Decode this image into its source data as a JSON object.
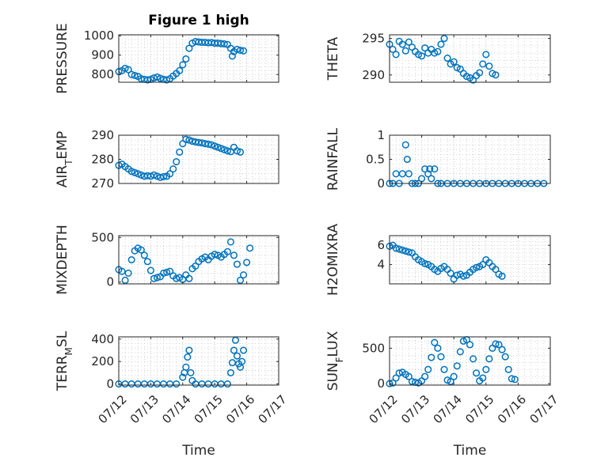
{
  "figure": {
    "title": "Figure 1 high"
  },
  "colors": {
    "marker": "#0072BD",
    "axis": "#262626",
    "grid": "#c8c8c8"
  },
  "x_ticks": [
    "07/12",
    "07/13",
    "07/14",
    "07/15",
    "07/16",
    "07/17"
  ],
  "chart_data": [
    {
      "type": "scatter",
      "ylabel": "PRESSURE",
      "ylabel_parts": [
        "PRESSURE"
      ],
      "xlabel": "",
      "xlim": [
        0,
        5
      ],
      "ylim": [
        760,
        1005
      ],
      "yticks": [
        800,
        900,
        1000
      ],
      "grid": true,
      "points": [
        [
          0.0,
          815
        ],
        [
          0.1,
          820
        ],
        [
          0.2,
          832
        ],
        [
          0.3,
          825
        ],
        [
          0.4,
          800
        ],
        [
          0.5,
          795
        ],
        [
          0.6,
          790
        ],
        [
          0.7,
          778
        ],
        [
          0.8,
          775
        ],
        [
          0.9,
          772
        ],
        [
          1.0,
          775
        ],
        [
          1.1,
          782
        ],
        [
          1.2,
          787
        ],
        [
          1.3,
          780
        ],
        [
          1.4,
          775
        ],
        [
          1.5,
          772
        ],
        [
          1.6,
          778
        ],
        [
          1.7,
          792
        ],
        [
          1.8,
          805
        ],
        [
          1.9,
          820
        ],
        [
          2.0,
          850
        ],
        [
          2.1,
          880
        ],
        [
          2.2,
          935
        ],
        [
          2.3,
          962
        ],
        [
          2.4,
          970
        ],
        [
          2.5,
          968
        ],
        [
          2.6,
          966
        ],
        [
          2.7,
          966
        ],
        [
          2.8,
          964
        ],
        [
          2.9,
          965
        ],
        [
          3.0,
          962
        ],
        [
          3.1,
          962
        ],
        [
          3.2,
          960
        ],
        [
          3.3,
          958
        ],
        [
          3.4,
          955
        ],
        [
          3.5,
          935
        ],
        [
          3.55,
          895
        ],
        [
          3.6,
          918
        ],
        [
          3.7,
          930
        ],
        [
          3.8,
          925
        ],
        [
          3.9,
          922
        ]
      ]
    },
    {
      "type": "scatter",
      "ylabel": "THETA",
      "ylabel_parts": [
        "THETA"
      ],
      "xlabel": "",
      "xlim": [
        0,
        5
      ],
      "ylim": [
        289,
        295.5
      ],
      "yticks": [
        290,
        295
      ],
      "grid": true,
      "points": [
        [
          0.0,
          294.2
        ],
        [
          0.1,
          293.5
        ],
        [
          0.2,
          292.8
        ],
        [
          0.3,
          294.6
        ],
        [
          0.4,
          294.2
        ],
        [
          0.5,
          293.3
        ],
        [
          0.6,
          294.5
        ],
        [
          0.7,
          293.8
        ],
        [
          0.8,
          293.2
        ],
        [
          0.9,
          292.8
        ],
        [
          1.0,
          292.6
        ],
        [
          1.1,
          293.7
        ],
        [
          1.2,
          293.0
        ],
        [
          1.3,
          293.5
        ],
        [
          1.4,
          293.0
        ],
        [
          1.5,
          293.2
        ],
        [
          1.6,
          294.2
        ],
        [
          1.7,
          295.0
        ],
        [
          1.8,
          292.3
        ],
        [
          1.9,
          291.5
        ],
        [
          2.0,
          291.8
        ],
        [
          2.1,
          291.0
        ],
        [
          2.2,
          290.8
        ],
        [
          2.3,
          290.2
        ],
        [
          2.4,
          289.8
        ],
        [
          2.5,
          289.6
        ],
        [
          2.6,
          289.3
        ],
        [
          2.7,
          289.9
        ],
        [
          2.8,
          290.3
        ],
        [
          2.9,
          291.5
        ],
        [
          3.0,
          292.8
        ],
        [
          3.1,
          291.2
        ],
        [
          3.2,
          290.2
        ],
        [
          3.3,
          290.0
        ]
      ]
    },
    {
      "type": "scatter",
      "ylabel": "AIR_TEMP",
      "ylabel_parts": [
        "AIR",
        "T",
        "EMP"
      ],
      "xlabel": "",
      "xlim": [
        0,
        5
      ],
      "ylim": [
        270,
        290
      ],
      "yticks": [
        270,
        280,
        290
      ],
      "grid": true,
      "points": [
        [
          0.0,
          277.5
        ],
        [
          0.1,
          278.0
        ],
        [
          0.2,
          277.0
        ],
        [
          0.3,
          276.0
        ],
        [
          0.4,
          275.0
        ],
        [
          0.5,
          274.5
        ],
        [
          0.6,
          274.0
        ],
        [
          0.7,
          273.5
        ],
        [
          0.8,
          273.0
        ],
        [
          0.9,
          273.2
        ],
        [
          1.0,
          273.0
        ],
        [
          1.1,
          273.5
        ],
        [
          1.2,
          273.0
        ],
        [
          1.3,
          272.5
        ],
        [
          1.4,
          272.8
        ],
        [
          1.5,
          273.0
        ],
        [
          1.6,
          274.0
        ],
        [
          1.7,
          276.0
        ],
        [
          1.8,
          279.0
        ],
        [
          1.9,
          283.0
        ],
        [
          2.0,
          286.5
        ],
        [
          2.1,
          288.3
        ],
        [
          2.2,
          288.0
        ],
        [
          2.3,
          287.5
        ],
        [
          2.4,
          287.2
        ],
        [
          2.5,
          287.0
        ],
        [
          2.6,
          286.8
        ],
        [
          2.7,
          286.5
        ],
        [
          2.8,
          286.3
        ],
        [
          2.9,
          286.0
        ],
        [
          3.0,
          285.5
        ],
        [
          3.1,
          285.0
        ],
        [
          3.2,
          284.5
        ],
        [
          3.3,
          284.0
        ],
        [
          3.4,
          283.5
        ],
        [
          3.5,
          283.2
        ],
        [
          3.6,
          285.0
        ],
        [
          3.7,
          283.5
        ],
        [
          3.8,
          283.0
        ]
      ]
    },
    {
      "type": "scatter",
      "ylabel": "RAINFALL",
      "ylabel_parts": [
        "RAINFALL"
      ],
      "xlabel": "",
      "xlim": [
        0,
        5
      ],
      "ylim": [
        0,
        1
      ],
      "yticks": [
        0,
        0.5,
        1
      ],
      "grid": true,
      "points": [
        [
          0.0,
          0
        ],
        [
          0.1,
          0
        ],
        [
          0.2,
          0.2
        ],
        [
          0.3,
          0
        ],
        [
          0.4,
          0.2
        ],
        [
          0.5,
          0.8
        ],
        [
          0.55,
          0.5
        ],
        [
          0.6,
          0.2
        ],
        [
          0.7,
          0
        ],
        [
          0.8,
          0
        ],
        [
          0.9,
          0
        ],
        [
          1.0,
          0.1
        ],
        [
          1.1,
          0.3
        ],
        [
          1.2,
          0.2
        ],
        [
          1.25,
          0.3
        ],
        [
          1.3,
          0.1
        ],
        [
          1.4,
          0.3
        ],
        [
          1.5,
          0
        ],
        [
          1.6,
          0
        ],
        [
          1.8,
          0
        ],
        [
          2.0,
          0
        ],
        [
          2.2,
          0
        ],
        [
          2.4,
          0
        ],
        [
          2.6,
          0
        ],
        [
          2.8,
          0
        ],
        [
          3.0,
          0
        ],
        [
          3.2,
          0
        ],
        [
          3.4,
          0
        ],
        [
          3.6,
          0
        ],
        [
          3.8,
          0
        ],
        [
          4.0,
          0
        ],
        [
          4.2,
          0
        ],
        [
          4.4,
          0
        ],
        [
          4.6,
          0
        ],
        [
          4.8,
          0
        ]
      ]
    },
    {
      "type": "scatter",
      "ylabel": "MIXDEPTH",
      "ylabel_parts": [
        "MIXDEPTH"
      ],
      "xlabel": "",
      "xlim": [
        0,
        5
      ],
      "ylim": [
        -20,
        520
      ],
      "yticks": [
        0,
        500
      ],
      "grid": true,
      "points": [
        [
          0.0,
          140
        ],
        [
          0.1,
          120
        ],
        [
          0.2,
          20
        ],
        [
          0.3,
          100
        ],
        [
          0.4,
          250
        ],
        [
          0.5,
          350
        ],
        [
          0.6,
          380
        ],
        [
          0.7,
          360
        ],
        [
          0.8,
          300
        ],
        [
          0.9,
          230
        ],
        [
          1.0,
          130
        ],
        [
          1.1,
          40
        ],
        [
          1.2,
          50
        ],
        [
          1.3,
          60
        ],
        [
          1.4,
          100
        ],
        [
          1.5,
          110
        ],
        [
          1.6,
          120
        ],
        [
          1.7,
          70
        ],
        [
          1.8,
          40
        ],
        [
          1.9,
          50
        ],
        [
          2.0,
          30
        ],
        [
          2.1,
          80
        ],
        [
          2.2,
          40
        ],
        [
          2.3,
          150
        ],
        [
          2.4,
          180
        ],
        [
          2.5,
          230
        ],
        [
          2.6,
          260
        ],
        [
          2.7,
          280
        ],
        [
          2.8,
          250
        ],
        [
          2.9,
          290
        ],
        [
          3.0,
          310
        ],
        [
          3.1,
          300
        ],
        [
          3.2,
          280
        ],
        [
          3.3,
          310
        ],
        [
          3.4,
          340
        ],
        [
          3.5,
          450
        ],
        [
          3.6,
          300
        ],
        [
          3.7,
          200
        ],
        [
          3.8,
          20
        ],
        [
          3.9,
          80
        ],
        [
          4.0,
          220
        ],
        [
          4.1,
          380
        ]
      ]
    },
    {
      "type": "scatter",
      "ylabel": "H2OMIXRA",
      "ylabel_parts": [
        "H2OMIXRA"
      ],
      "xlabel": "",
      "xlim": [
        0,
        5
      ],
      "ylim": [
        2,
        7
      ],
      "yticks": [
        4,
        6
      ],
      "grid": true,
      "points": [
        [
          0.0,
          5.9
        ],
        [
          0.1,
          6.0
        ],
        [
          0.2,
          5.7
        ],
        [
          0.3,
          5.6
        ],
        [
          0.4,
          5.5
        ],
        [
          0.5,
          5.4
        ],
        [
          0.6,
          5.3
        ],
        [
          0.7,
          5.2
        ],
        [
          0.8,
          4.8
        ],
        [
          0.9,
          4.5
        ],
        [
          1.0,
          4.3
        ],
        [
          1.1,
          4.1
        ],
        [
          1.2,
          4.0
        ],
        [
          1.3,
          3.8
        ],
        [
          1.4,
          3.5
        ],
        [
          1.5,
          3.3
        ],
        [
          1.6,
          3.6
        ],
        [
          1.7,
          3.8
        ],
        [
          1.8,
          3.5
        ],
        [
          1.9,
          3.1
        ],
        [
          2.0,
          2.5
        ],
        [
          2.1,
          2.9
        ],
        [
          2.2,
          3.0
        ],
        [
          2.3,
          2.8
        ],
        [
          2.4,
          2.9
        ],
        [
          2.5,
          3.2
        ],
        [
          2.6,
          3.5
        ],
        [
          2.7,
          3.7
        ],
        [
          2.8,
          3.8
        ],
        [
          2.9,
          4.0
        ],
        [
          3.0,
          4.5
        ],
        [
          3.1,
          4.2
        ],
        [
          3.2,
          3.8
        ],
        [
          3.3,
          3.5
        ],
        [
          3.4,
          3.0
        ],
        [
          3.5,
          2.8
        ]
      ]
    },
    {
      "type": "scatter",
      "ylabel": "TERR_MSL",
      "ylabel_parts": [
        "TERR",
        "M",
        "SL"
      ],
      "xlabel": "Time",
      "xlim": [
        0,
        5
      ],
      "ylim": [
        -10,
        420
      ],
      "yticks": [
        0,
        200,
        400
      ],
      "grid": true,
      "points": [
        [
          0.0,
          0
        ],
        [
          0.2,
          0
        ],
        [
          0.4,
          0
        ],
        [
          0.6,
          0
        ],
        [
          0.8,
          0
        ],
        [
          1.0,
          0
        ],
        [
          1.2,
          0
        ],
        [
          1.4,
          0
        ],
        [
          1.6,
          0
        ],
        [
          1.8,
          0
        ],
        [
          2.0,
          60
        ],
        [
          2.05,
          100
        ],
        [
          2.1,
          150
        ],
        [
          2.15,
          240
        ],
        [
          2.2,
          300
        ],
        [
          2.25,
          100
        ],
        [
          2.3,
          30
        ],
        [
          2.4,
          0
        ],
        [
          2.6,
          0
        ],
        [
          2.8,
          0
        ],
        [
          3.0,
          0
        ],
        [
          3.2,
          0
        ],
        [
          3.4,
          0
        ],
        [
          3.5,
          100
        ],
        [
          3.55,
          190
        ],
        [
          3.6,
          300
        ],
        [
          3.65,
          390
        ],
        [
          3.7,
          250
        ],
        [
          3.75,
          180
        ],
        [
          3.8,
          150
        ],
        [
          3.85,
          200
        ],
        [
          3.9,
          300
        ]
      ]
    },
    {
      "type": "scatter",
      "ylabel": "SUN_FLUX",
      "ylabel_parts": [
        "SUN",
        "F",
        "LUX"
      ],
      "xlabel": "Time",
      "xlim": [
        0,
        5
      ],
      "ylim": [
        -20,
        660
      ],
      "yticks": [
        0,
        500
      ],
      "grid": true,
      "points": [
        [
          0.0,
          0
        ],
        [
          0.1,
          10
        ],
        [
          0.2,
          80
        ],
        [
          0.3,
          150
        ],
        [
          0.4,
          160
        ],
        [
          0.5,
          130
        ],
        [
          0.6,
          100
        ],
        [
          0.7,
          30
        ],
        [
          0.8,
          20
        ],
        [
          0.9,
          10
        ],
        [
          1.0,
          40
        ],
        [
          1.1,
          100
        ],
        [
          1.2,
          200
        ],
        [
          1.3,
          370
        ],
        [
          1.4,
          580
        ],
        [
          1.5,
          500
        ],
        [
          1.6,
          380
        ],
        [
          1.7,
          200
        ],
        [
          1.8,
          50
        ],
        [
          1.9,
          30
        ],
        [
          2.0,
          100
        ],
        [
          2.1,
          250
        ],
        [
          2.2,
          450
        ],
        [
          2.3,
          600
        ],
        [
          2.4,
          620
        ],
        [
          2.5,
          550
        ],
        [
          2.6,
          350
        ],
        [
          2.7,
          150
        ],
        [
          2.8,
          40
        ],
        [
          2.9,
          80
        ],
        [
          3.0,
          200
        ],
        [
          3.1,
          350
        ],
        [
          3.2,
          500
        ],
        [
          3.3,
          560
        ],
        [
          3.4,
          550
        ],
        [
          3.5,
          480
        ],
        [
          3.6,
          380
        ],
        [
          3.7,
          200
        ],
        [
          3.8,
          70
        ],
        [
          3.9,
          60
        ]
      ]
    }
  ]
}
